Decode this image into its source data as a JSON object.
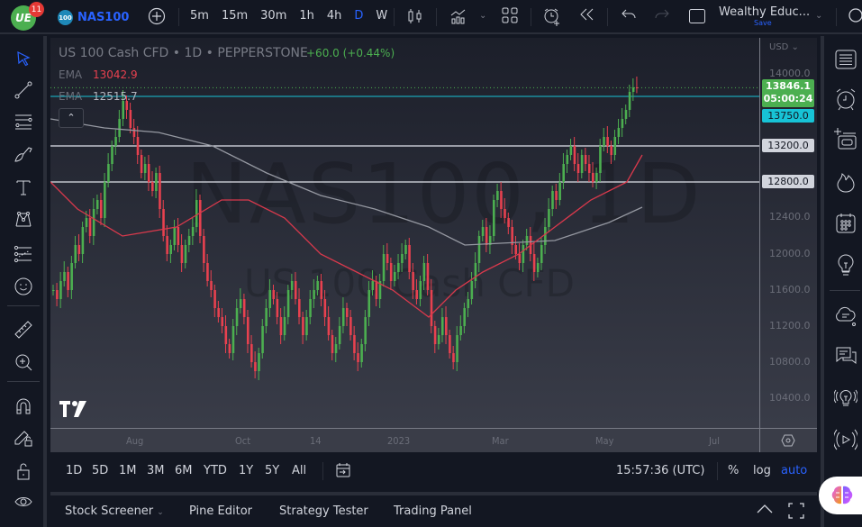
{
  "topbar": {
    "notification_count": "11",
    "logo_text": "UE",
    "symbol_badge": "100",
    "symbol": "NAS100",
    "intervals": [
      {
        "label": "5m",
        "active": false
      },
      {
        "label": "15m",
        "active": false
      },
      {
        "label": "30m",
        "active": false
      },
      {
        "label": "1h",
        "active": false
      },
      {
        "label": "4h",
        "active": false
      },
      {
        "label": "D",
        "active": true
      },
      {
        "label": "W",
        "active": false
      }
    ],
    "layout_name": "Wealthy Educ...",
    "layout_save": "Save",
    "icons": [
      "add-symbol-icon",
      "interval-dropdown-icon",
      "candles-chart-type-icon",
      "indicators-icon",
      "templates-dropdown-icon",
      "layout-grid-icon",
      "alert-add-icon",
      "replay-icon",
      "undo-icon",
      "redo-icon",
      "fullscreen-square-icon",
      "layout-dropdown-icon",
      "search-icon"
    ]
  },
  "left_toolbar": {
    "tools": [
      "cursor",
      "trend-line",
      "horizontal-lines",
      "brush",
      "text",
      "pattern",
      "fib-retracement",
      "emoji",
      "ruler",
      "zoom-in",
      "magnet",
      "lock-drawing",
      "lock",
      "eye"
    ]
  },
  "chart": {
    "legend_title": "US 100 Cash CFD • 1D • PEPPERSTONE",
    "change": "+60.0 (+0.44%)",
    "ema_rows": [
      {
        "key": "EMA",
        "value": "13042.9",
        "color": "#e8414f"
      },
      {
        "key": "EMA",
        "value": "12515.7",
        "color": "#b2b5be"
      }
    ],
    "collapse_label": "^",
    "watermark_symbol": "NAS100, 1D",
    "watermark_desc": "US 100 Cash CFD",
    "currency": "USD",
    "last_price": "13846.1",
    "countdown": "05:00:24",
    "ema_line_price": "13750.0",
    "levels": [
      "13200.0",
      "12800.0"
    ],
    "price_ticks": [
      "14000.0",
      "12400.0",
      "12000.0",
      "11600.0",
      "11200.0",
      "10800.0",
      "10400.0"
    ],
    "time_ticks": [
      "Aug",
      "Oct",
      "14",
      "2023",
      "Mar",
      "May",
      "Jul"
    ],
    "tv_logo": "TV",
    "colors": {
      "up": "#4caf50",
      "down": "#e8414f",
      "ema_fast": "#d9394c",
      "ema_slow": "#9598a1",
      "level": "#e0e3eb",
      "cyan": "#17c3d6"
    }
  },
  "right_bar": {
    "icons": [
      "watchlist-icon",
      "alerts-clock-icon",
      "add-list-icon",
      "hotlist-fire-icon",
      "calendar-icon",
      "ideas-bulb-icon",
      "chat-cloud-icon",
      "messages-icon",
      "signals-bulb-icon",
      "streams-play-icon"
    ]
  },
  "range_bar": {
    "ranges": [
      "1D",
      "5D",
      "1M",
      "3M",
      "6M",
      "YTD",
      "1Y",
      "5Y",
      "All"
    ],
    "time": "15:57:36 (UTC)",
    "percent": "%",
    "log": "log",
    "auto": "auto"
  },
  "bottom_panel": {
    "tabs": [
      "Stock Screener",
      "Pine Editor",
      "Strategy Tester",
      "Trading Panel"
    ]
  }
}
